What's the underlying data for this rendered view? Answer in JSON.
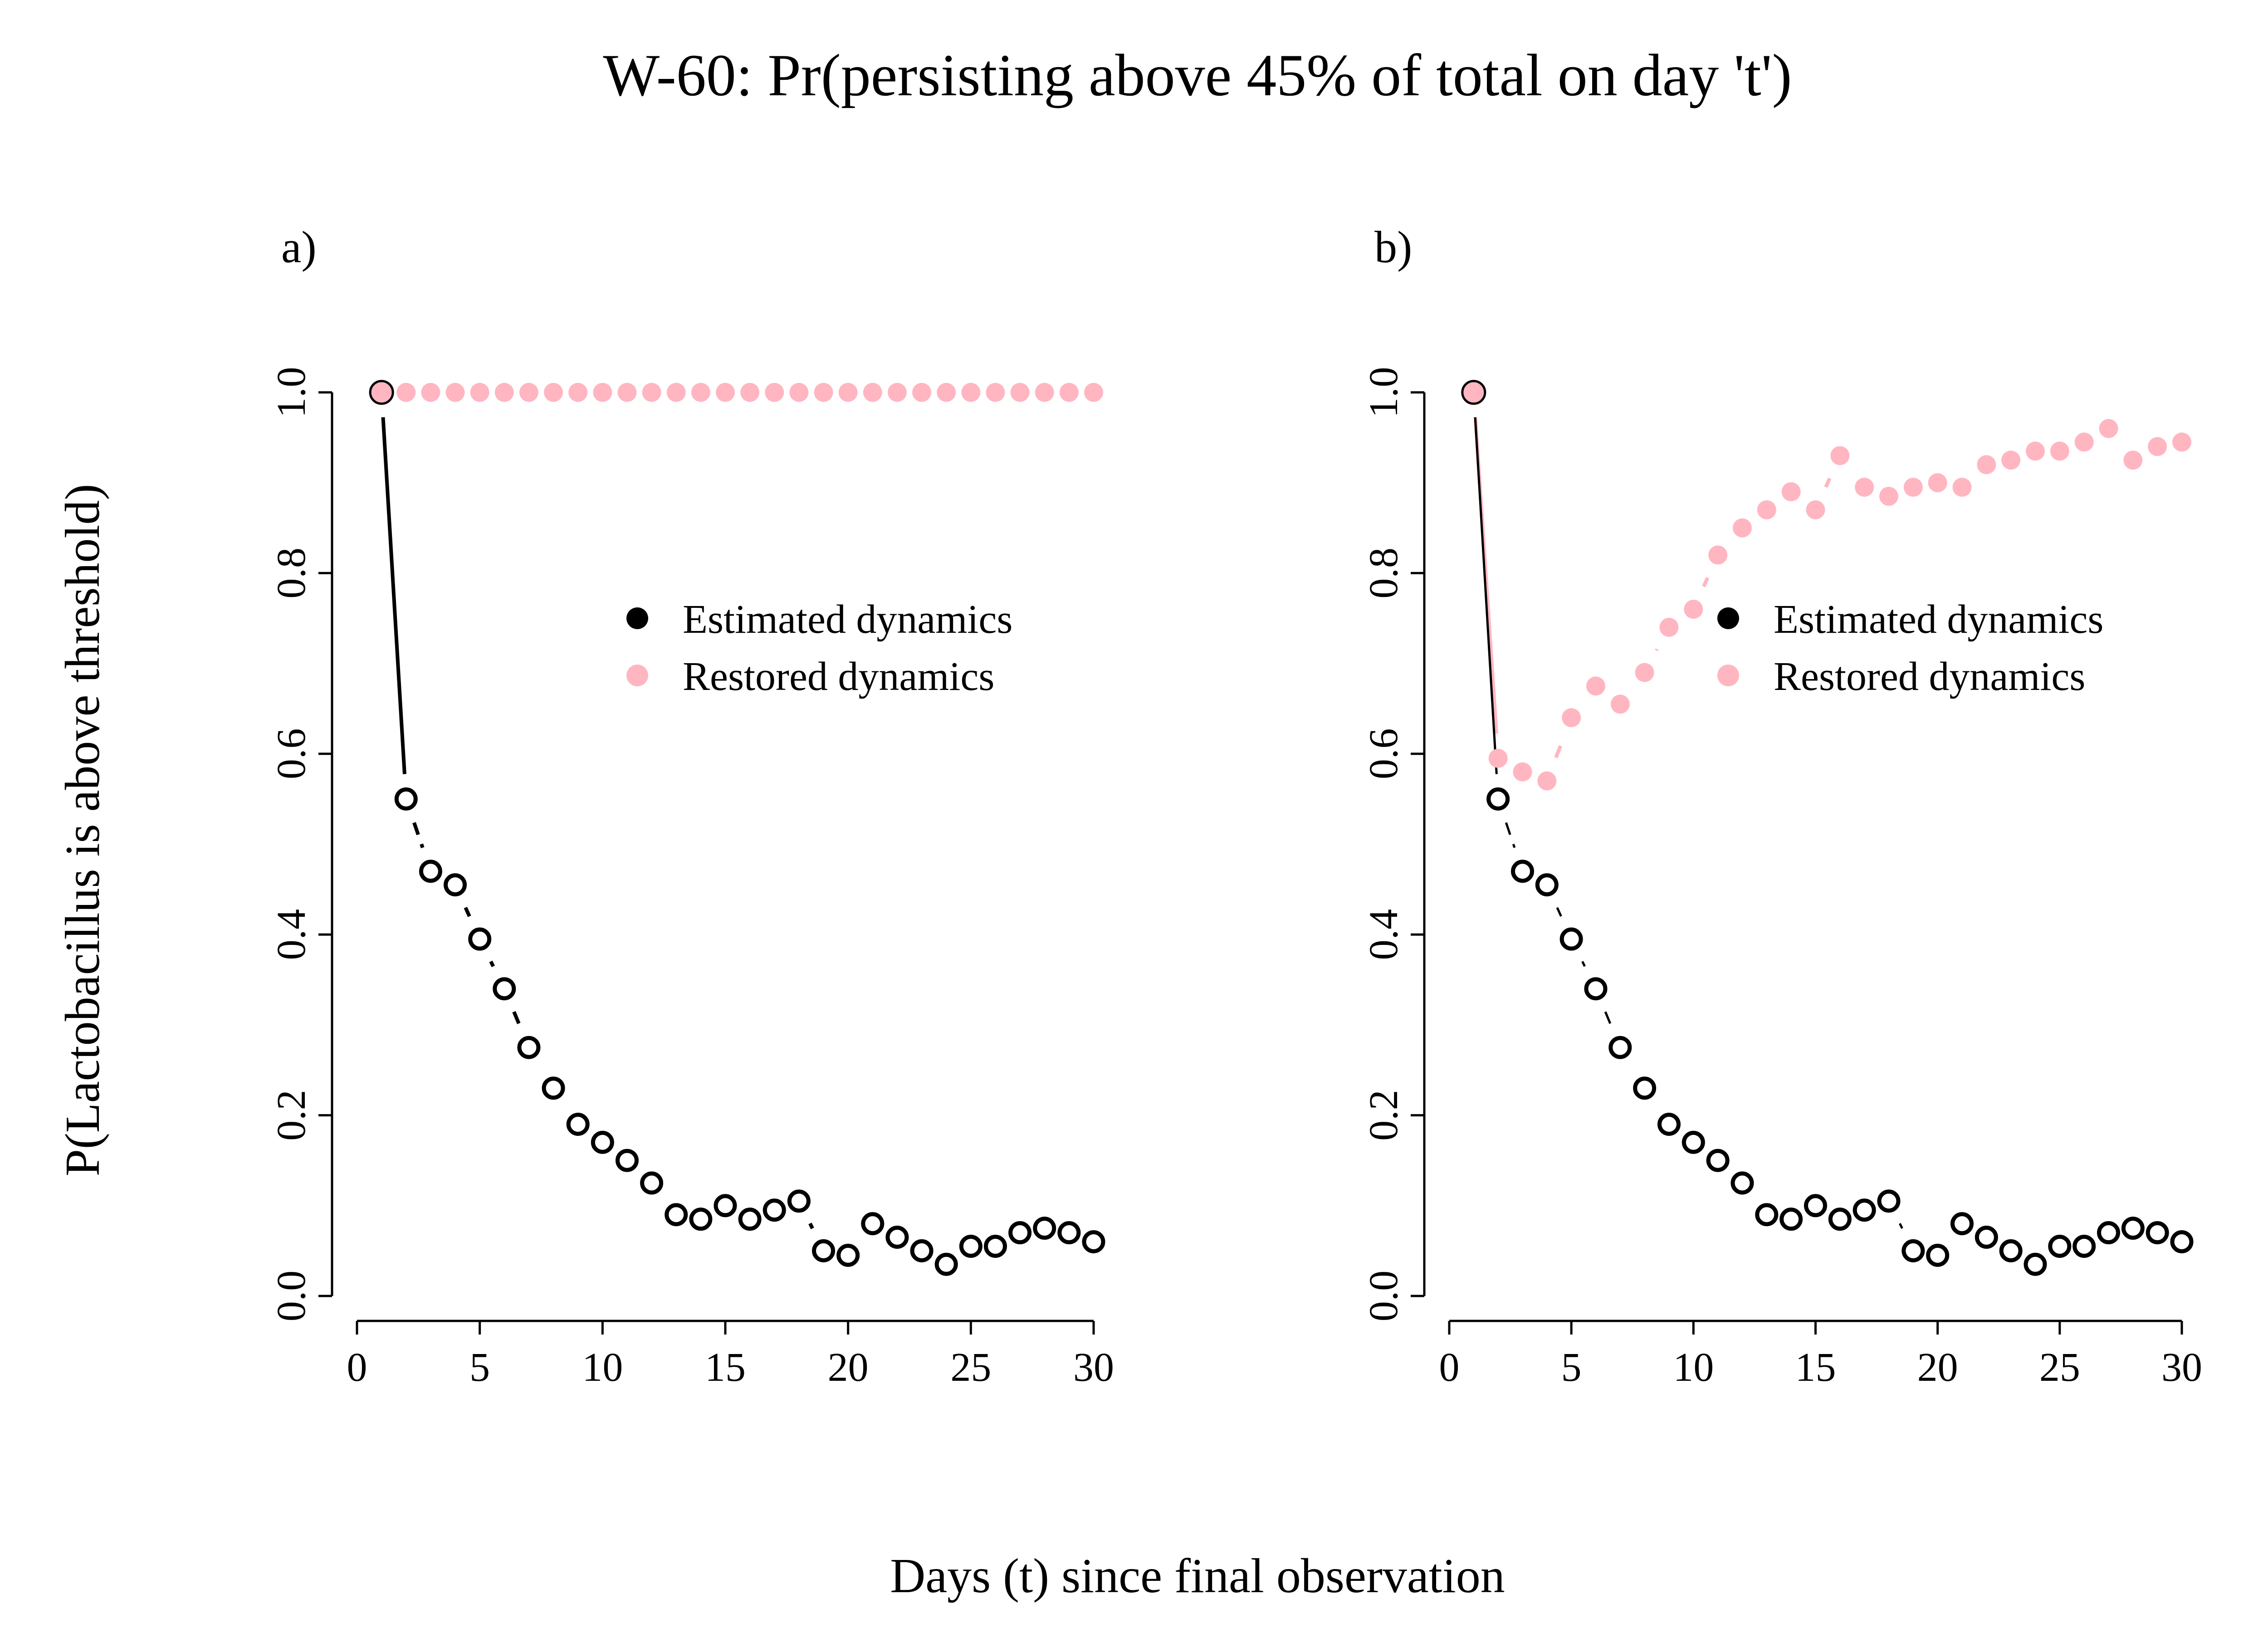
{
  "title": "W-60: Pr(persisting above 45% of total on day 't')",
  "xlabel": "Days (t) since final observation",
  "ylabel": "P(Lactobacillus is above threshold)",
  "colors": {
    "estimated": "#000000",
    "restored": "#FFB6C1",
    "background": "#FFFFFF"
  },
  "legend": {
    "estimated_label": "Estimated dynamics",
    "restored_label": "Restored dynamics"
  },
  "chart_data": [
    {
      "type": "line",
      "panel_label": "a)",
      "xlim": [
        0,
        30
      ],
      "ylim": [
        0,
        1
      ],
      "xticks": [
        0,
        5,
        10,
        15,
        20,
        25,
        30
      ],
      "yticks": [
        0.0,
        0.2,
        0.4,
        0.6,
        0.8,
        1.0
      ],
      "xtick_labels": [
        "0",
        "5",
        "10",
        "15",
        "20",
        "25",
        "30"
      ],
      "ytick_labels": [
        "0.0",
        "0.2",
        "0.4",
        "0.6",
        "0.8",
        "1.0"
      ],
      "legend_position": "center-right",
      "grid": false,
      "x": [
        1,
        2,
        3,
        4,
        5,
        6,
        7,
        8,
        9,
        10,
        11,
        12,
        13,
        14,
        15,
        16,
        17,
        18,
        19,
        20,
        21,
        22,
        23,
        24,
        25,
        26,
        27,
        28,
        29,
        30
      ],
      "series": [
        {
          "name": "Estimated dynamics",
          "style": "open-circle",
          "values": [
            1.0,
            0.55,
            0.47,
            0.455,
            0.395,
            0.34,
            0.275,
            0.23,
            0.19,
            0.17,
            0.15,
            0.125,
            0.09,
            0.085,
            0.1,
            0.085,
            0.095,
            0.105,
            0.05,
            0.045,
            0.08,
            0.065,
            0.05,
            0.035,
            0.055,
            0.055,
            0.07,
            0.075,
            0.07,
            0.06
          ]
        },
        {
          "name": "Restored dynamics",
          "style": "filled-circle",
          "values": [
            1.0,
            1.0,
            1.0,
            1.0,
            1.0,
            1.0,
            1.0,
            1.0,
            1.0,
            1.0,
            1.0,
            1.0,
            1.0,
            1.0,
            1.0,
            1.0,
            1.0,
            1.0,
            1.0,
            1.0,
            1.0,
            1.0,
            1.0,
            1.0,
            1.0,
            1.0,
            1.0,
            1.0,
            1.0,
            1.0
          ]
        }
      ]
    },
    {
      "type": "line",
      "panel_label": "b)",
      "xlim": [
        0,
        30
      ],
      "ylim": [
        0,
        1
      ],
      "xticks": [
        0,
        5,
        10,
        15,
        20,
        25,
        30
      ],
      "yticks": [
        0.0,
        0.2,
        0.4,
        0.6,
        0.8,
        1.0
      ],
      "xtick_labels": [
        "0",
        "5",
        "10",
        "15",
        "20",
        "25",
        "30"
      ],
      "ytick_labels": [
        "0.0",
        "0.2",
        "0.4",
        "0.6",
        "0.8",
        "1.0"
      ],
      "legend_position": "center-right",
      "grid": false,
      "x": [
        1,
        2,
        3,
        4,
        5,
        6,
        7,
        8,
        9,
        10,
        11,
        12,
        13,
        14,
        15,
        16,
        17,
        18,
        19,
        20,
        21,
        22,
        23,
        24,
        25,
        26,
        27,
        28,
        29,
        30
      ],
      "series": [
        {
          "name": "Estimated dynamics",
          "style": "open-circle",
          "values": [
            1.0,
            0.55,
            0.47,
            0.455,
            0.395,
            0.34,
            0.275,
            0.23,
            0.19,
            0.17,
            0.15,
            0.125,
            0.09,
            0.085,
            0.1,
            0.085,
            0.095,
            0.105,
            0.05,
            0.045,
            0.08,
            0.065,
            0.05,
            0.035,
            0.055,
            0.055,
            0.07,
            0.075,
            0.07,
            0.06
          ]
        },
        {
          "name": "Restored dynamics",
          "style": "filled-circle",
          "values": [
            1.0,
            0.595,
            0.58,
            0.57,
            0.64,
            0.675,
            0.655,
            0.69,
            0.74,
            0.76,
            0.82,
            0.85,
            0.87,
            0.89,
            0.87,
            0.93,
            0.895,
            0.885,
            0.895,
            0.9,
            0.895,
            0.92,
            0.925,
            0.935,
            0.935,
            0.945,
            0.96,
            0.925,
            0.94,
            0.945
          ]
        }
      ]
    }
  ]
}
